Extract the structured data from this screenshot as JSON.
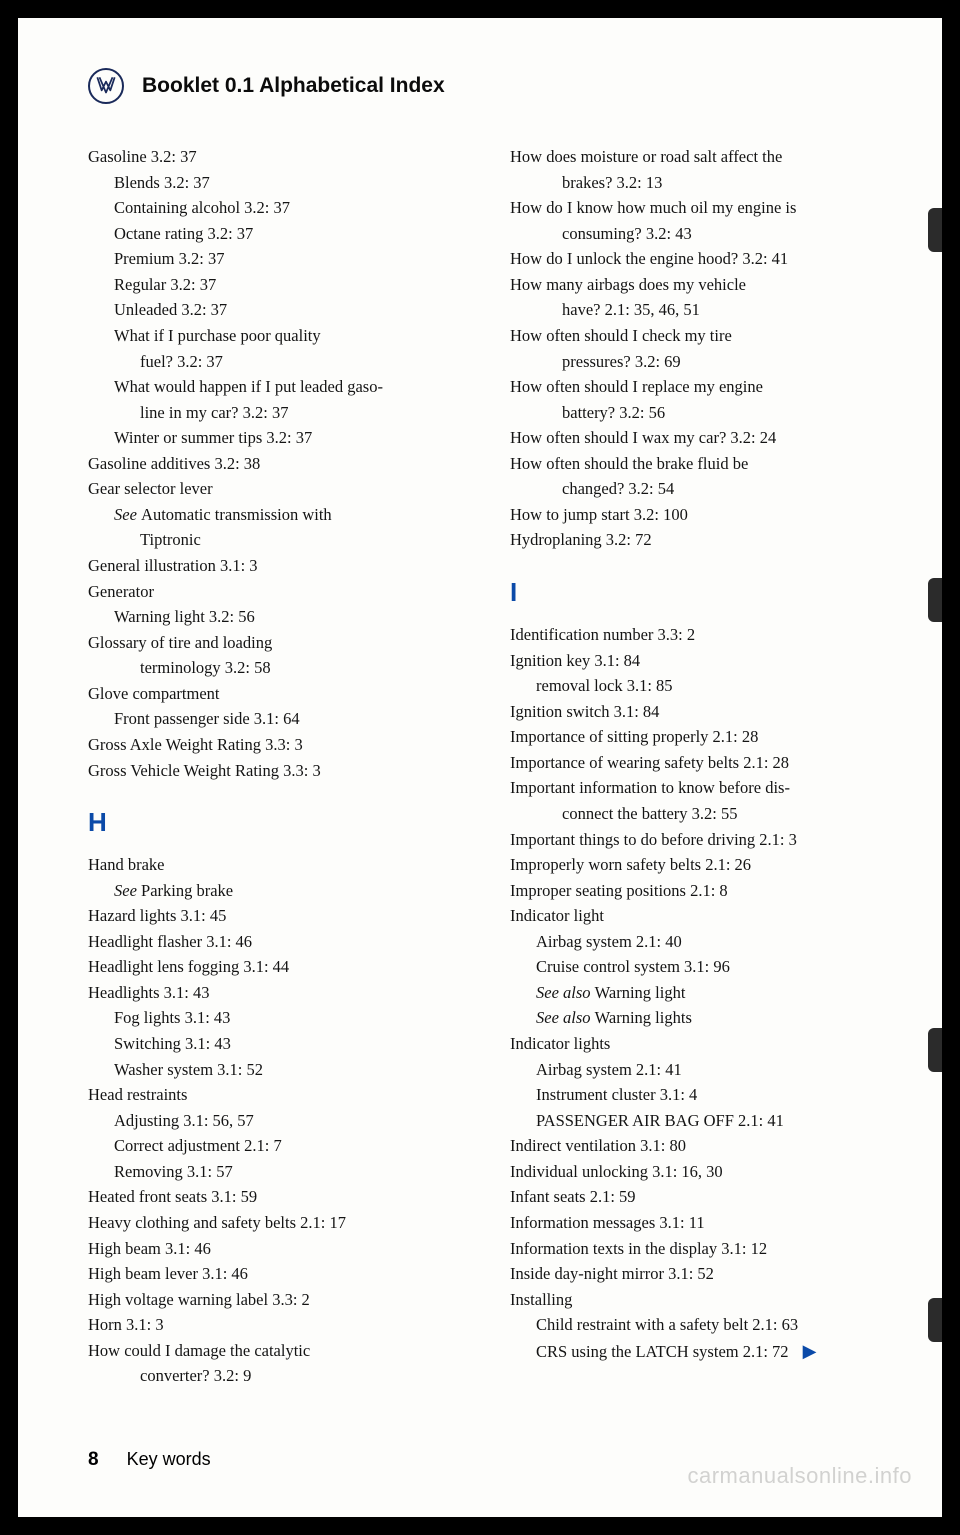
{
  "header": {
    "title": "Booklet 0.1 Alphabetical Index"
  },
  "leftColumn": [
    {
      "text": "Gasoline 3.2: 37",
      "level": 0
    },
    {
      "text": "Blends 3.2: 37",
      "level": 1
    },
    {
      "text": "Containing alcohol 3.2: 37",
      "level": 1
    },
    {
      "text": "Octane rating 3.2: 37",
      "level": 1
    },
    {
      "text": "Premium 3.2: 37",
      "level": 1
    },
    {
      "text": "Regular 3.2: 37",
      "level": 1
    },
    {
      "text": "Unleaded 3.2: 37",
      "level": 1
    },
    {
      "text": "What if I purchase poor quality",
      "level": 1
    },
    {
      "text": "fuel? 3.2: 37",
      "level": 2
    },
    {
      "text": "What would happen if I put leaded gaso-",
      "level": 1
    },
    {
      "text": "line in my car? 3.2: 37",
      "level": 2
    },
    {
      "text": "Winter or summer tips 3.2: 37",
      "level": 1
    },
    {
      "text": "Gasoline additives 3.2: 38",
      "level": 0
    },
    {
      "text": "Gear selector lever",
      "level": 0
    },
    {
      "text": "See Automatic transmission with",
      "level": 1,
      "italicPrefix": "See "
    },
    {
      "text": "Tiptronic",
      "level": 2
    },
    {
      "text": "General illustration 3.1: 3",
      "level": 0
    },
    {
      "text": "Generator",
      "level": 0
    },
    {
      "text": "Warning light 3.2: 56",
      "level": 1
    },
    {
      "text": "Glossary of tire and loading",
      "level": 0
    },
    {
      "text": "terminology 3.2: 58",
      "level": 2
    },
    {
      "text": "Glove compartment",
      "level": 0
    },
    {
      "text": "Front passenger side 3.1: 64",
      "level": 1
    },
    {
      "text": "Gross Axle Weight Rating 3.3: 3",
      "level": 0
    },
    {
      "text": "Gross Vehicle Weight Rating 3.3: 3",
      "level": 0
    },
    {
      "text": "H",
      "section": true
    },
    {
      "text": "Hand brake",
      "level": 0
    },
    {
      "text": "See Parking brake",
      "level": 1,
      "italicPrefix": "See "
    },
    {
      "text": "Hazard lights 3.1: 45",
      "level": 0
    },
    {
      "text": "Headlight flasher 3.1: 46",
      "level": 0
    },
    {
      "text": "Headlight lens fogging 3.1: 44",
      "level": 0
    },
    {
      "text": "Headlights 3.1: 43",
      "level": 0
    },
    {
      "text": "Fog lights 3.1: 43",
      "level": 1
    },
    {
      "text": "Switching 3.1: 43",
      "level": 1
    },
    {
      "text": "Washer system 3.1: 52",
      "level": 1
    },
    {
      "text": "Head restraints",
      "level": 0
    },
    {
      "text": "Adjusting 3.1: 56, 57",
      "level": 1
    },
    {
      "text": "Correct adjustment 2.1: 7",
      "level": 1
    },
    {
      "text": "Removing 3.1: 57",
      "level": 1
    },
    {
      "text": "Heated front seats 3.1: 59",
      "level": 0
    },
    {
      "text": "Heavy clothing and safety belts 2.1: 17",
      "level": 0
    },
    {
      "text": "High beam 3.1: 46",
      "level": 0
    },
    {
      "text": "High beam lever 3.1: 46",
      "level": 0
    },
    {
      "text": "High voltage warning label 3.3: 2",
      "level": 0
    },
    {
      "text": "Horn 3.1: 3",
      "level": 0
    },
    {
      "text": "How could I damage the catalytic",
      "level": 0
    },
    {
      "text": "converter? 3.2: 9",
      "level": 2
    }
  ],
  "rightColumn": [
    {
      "text": "How does moisture or road salt affect the",
      "level": 0
    },
    {
      "text": "brakes? 3.2: 13",
      "level": 2
    },
    {
      "text": "How do I know how much oil my engine is",
      "level": 0
    },
    {
      "text": "consuming? 3.2: 43",
      "level": 2
    },
    {
      "text": "How do I unlock the engine hood? 3.2: 41",
      "level": 0
    },
    {
      "text": "How many airbags does my vehicle",
      "level": 0
    },
    {
      "text": "have? 2.1: 35, 46, 51",
      "level": 2
    },
    {
      "text": "How often should I check my tire",
      "level": 0
    },
    {
      "text": "pressures? 3.2: 69",
      "level": 2
    },
    {
      "text": "How often should I replace my engine",
      "level": 0
    },
    {
      "text": "battery? 3.2: 56",
      "level": 2
    },
    {
      "text": "How often should I wax my car? 3.2: 24",
      "level": 0
    },
    {
      "text": "How often should the brake fluid be",
      "level": 0
    },
    {
      "text": "changed? 3.2: 54",
      "level": 2
    },
    {
      "text": "How to jump start 3.2: 100",
      "level": 0
    },
    {
      "text": "Hydroplaning 3.2: 72",
      "level": 0
    },
    {
      "text": "I",
      "section": true
    },
    {
      "text": "Identification number 3.3: 2",
      "level": 0
    },
    {
      "text": "Ignition key 3.1: 84",
      "level": 0
    },
    {
      "text": "removal lock 3.1: 85",
      "level": 1
    },
    {
      "text": "Ignition switch 3.1: 84",
      "level": 0
    },
    {
      "text": "Importance of sitting properly 2.1: 28",
      "level": 0
    },
    {
      "text": "Importance of wearing safety belts 2.1: 28",
      "level": 0
    },
    {
      "text": "Important information to know before dis-",
      "level": 0
    },
    {
      "text": "connect the battery 3.2: 55",
      "level": 2
    },
    {
      "text": "Important things to do before driving 2.1: 3",
      "level": 0
    },
    {
      "text": "Improperly worn safety belts 2.1: 26",
      "level": 0
    },
    {
      "text": "Improper seating positions 2.1: 8",
      "level": 0
    },
    {
      "text": "Indicator light",
      "level": 0
    },
    {
      "text": "Airbag system 2.1: 40",
      "level": 1
    },
    {
      "text": "Cruise control system 3.1: 96",
      "level": 1
    },
    {
      "text": "See also Warning light",
      "level": 1,
      "italicPrefix": "See also "
    },
    {
      "text": "See also Warning lights",
      "level": 1,
      "italicPrefix": "See also "
    },
    {
      "text": "Indicator lights",
      "level": 0
    },
    {
      "text": "Airbag system 2.1: 41",
      "level": 1
    },
    {
      "text": "Instrument cluster 3.1: 4",
      "level": 1
    },
    {
      "text": "PASSENGER AIR BAG OFF 2.1: 41",
      "level": 1
    },
    {
      "text": "Indirect ventilation 3.1: 80",
      "level": 0
    },
    {
      "text": "Individual unlocking 3.1: 16, 30",
      "level": 0
    },
    {
      "text": "Infant seats 2.1: 59",
      "level": 0
    },
    {
      "text": "Information messages 3.1: 11",
      "level": 0
    },
    {
      "text": "Information texts in the display 3.1: 12",
      "level": 0
    },
    {
      "text": "Inside day-night mirror 3.1: 52",
      "level": 0
    },
    {
      "text": "Installing",
      "level": 0
    },
    {
      "text": "Child restraint with a safety belt 2.1: 63",
      "level": 1
    },
    {
      "text": "CRS using the LATCH system 2.1: 72",
      "level": 1,
      "arrow": true
    }
  ],
  "footer": {
    "pageNumber": "8",
    "label": "Key words"
  },
  "watermark": "carmanualsonline.info",
  "colors": {
    "accent_blue": "#0b4aa8",
    "text": "#141414",
    "page_bg": "#fdfdfb",
    "border": "#000000"
  }
}
